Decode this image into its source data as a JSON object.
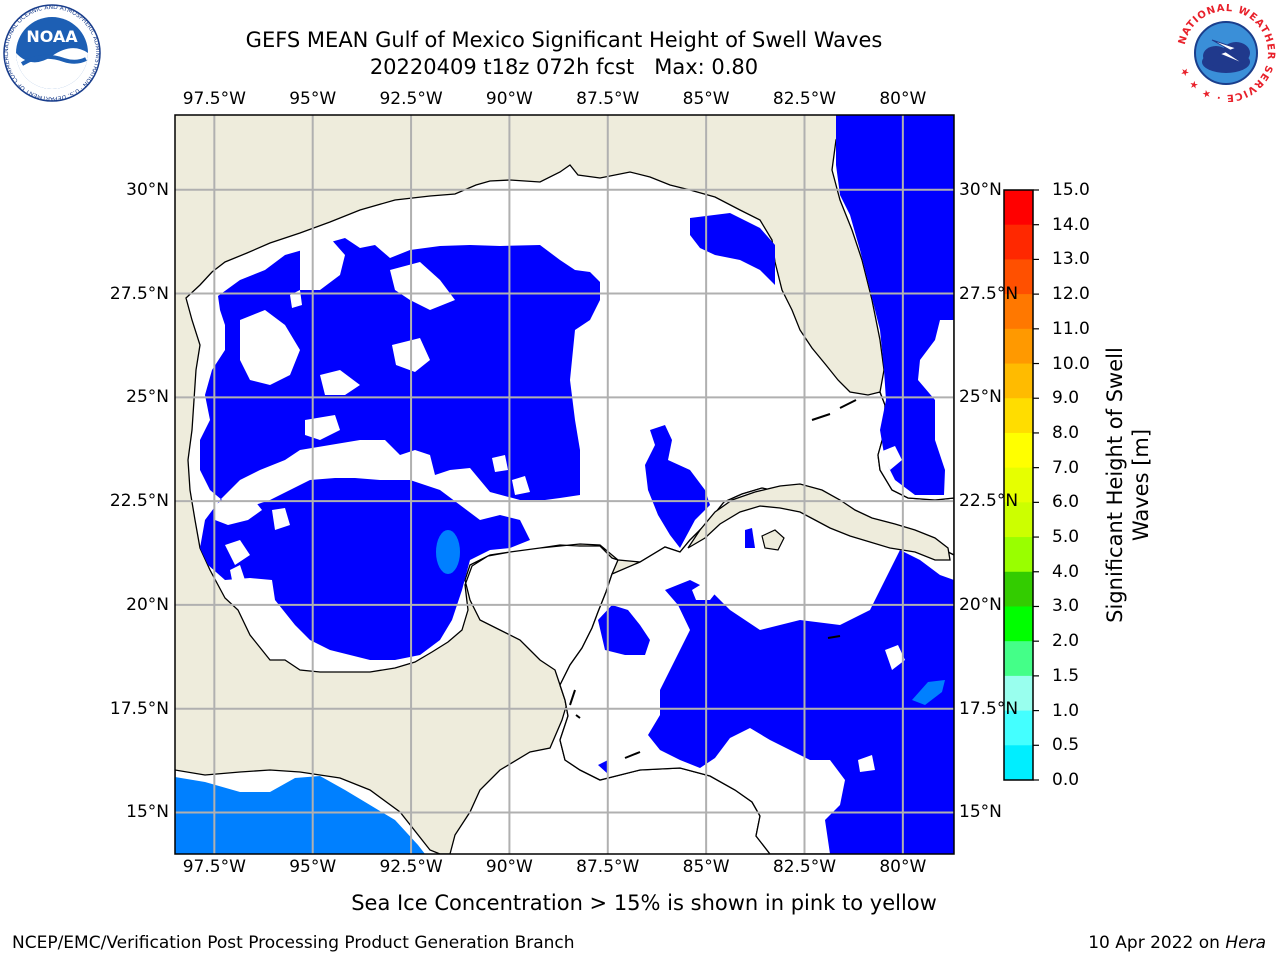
{
  "figure": {
    "title_line1": "GEFS MEAN Gulf of Mexico Significant Height of Swell Waves",
    "title_line2": "20220409 t18z 072h fcst   Max: 0.80",
    "ice_note": "Sea Ice Concentration > 15% is shown in pink to yellow",
    "footer_left": "NCEP/EMC/Verification Post Processing Product Generation Branch",
    "footer_date": "10 Apr 2022 on ",
    "footer_host": "Hera"
  },
  "logos": {
    "noaa_text": "NOAA",
    "noaa_ring_text": "NATIONAL OCEANIC AND ATMOSPHERIC ADMINISTRATION · U.S. DEPARTMENT OF COMMERCE ·",
    "nws_ring_text": "NATIONAL WEATHER SERVICE · ★ ★ ★"
  },
  "map": {
    "extent": {
      "lon_min": -98.5,
      "lon_max": -78.7,
      "lat_min": 14.0,
      "lat_max": 31.8
    },
    "lon_ticks": [
      "97.5°W",
      "95°W",
      "92.5°W",
      "90°W",
      "87.5°W",
      "85°W",
      "82.5°W",
      "80°W"
    ],
    "lon_values": [
      -97.5,
      -95,
      -92.5,
      -90,
      -87.5,
      -85,
      -82.5,
      -80
    ],
    "lat_ticks": [
      "30°N",
      "27.5°N",
      "25°N",
      "22.5°N",
      "20°N",
      "17.5°N",
      "15°N"
    ],
    "lat_values": [
      30,
      27.5,
      25,
      22.5,
      20,
      17.5,
      15
    ],
    "colors": {
      "land": "#eeecdc",
      "ocean_low": "#0000ff",
      "ocean_mid": "#0080ff",
      "grid": "#b0b0b0"
    }
  },
  "colorbar": {
    "label": "Significant Height of Swell Waves [m]",
    "ticks": [
      "15.0",
      "14.0",
      "13.0",
      "12.0",
      "11.0",
      "10.0",
      "9.0",
      "8.0",
      "7.0",
      "6.0",
      "5.0",
      "4.0",
      "3.0",
      "2.0",
      "1.5",
      "1.0",
      "0.5",
      "0.0"
    ],
    "colors": [
      "#ff0000",
      "#ff2800",
      "#ff5000",
      "#ff7800",
      "#ff9900",
      "#ffbb00",
      "#ffdd00",
      "#ffff00",
      "#e6ff00",
      "#ccff00",
      "#99ff00",
      "#33cc00",
      "#00ff00",
      "#44ff88",
      "#99ffee",
      "#44ffff",
      "#00eeff",
      "#0080ff",
      "#0000ff"
    ]
  }
}
